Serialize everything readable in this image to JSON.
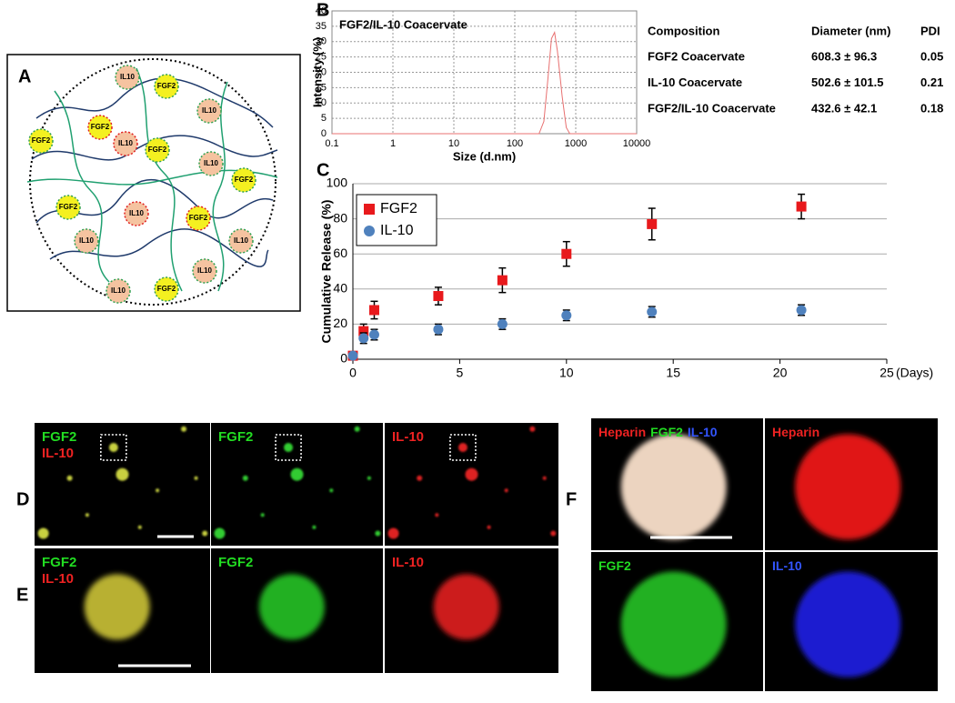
{
  "panel_labels": [
    "A",
    "B",
    "C",
    "D",
    "E",
    "F"
  ],
  "diagram": {
    "labels": [
      "IL10",
      "FGF2",
      "FGF2",
      "IL10",
      "FGF2",
      "IL10",
      "FGF2",
      "IL10",
      "FGF2",
      "FGF2",
      "IL10",
      "FGF2",
      "IL10",
      "IL10",
      "IL10",
      "IL10",
      "FGF2"
    ]
  },
  "chart_data": [
    {
      "type": "line",
      "title": "FGF2/IL-10 Coacervate",
      "x_label": "Size (d.nm)",
      "y_label": "Intensity (%)",
      "xscale": "log",
      "grid": true,
      "x": [
        0.1,
        250,
        300,
        350,
        400,
        450,
        500,
        600,
        700,
        800,
        10000
      ],
      "series": [
        {
          "name": "FGF2/IL-10 Coacervate",
          "color": "#e87070",
          "values": [
            0,
            0,
            4,
            18,
            31,
            33,
            27,
            12,
            2,
            0,
            0
          ]
        }
      ],
      "xlim": [
        0.1,
        10000
      ],
      "xticks": [
        0.1,
        1,
        10,
        100,
        1000,
        10000
      ],
      "ylim": [
        0,
        40
      ],
      "yticks": [
        0,
        5,
        10,
        15,
        20,
        25,
        30,
        35,
        40
      ]
    },
    {
      "type": "scatter",
      "y_label": "Cumulative Release (%)",
      "x_label": "(Days)",
      "grid": true,
      "legend": "upper-left",
      "series": [
        {
          "name": "FGF2",
          "color": "#e8191c",
          "marker": "square",
          "x": [
            0,
            0.5,
            1,
            4,
            7,
            10,
            14,
            21
          ],
          "values": [
            2,
            16,
            28,
            36,
            45,
            60,
            77,
            87
          ],
          "errors": [
            1,
            4,
            5,
            5,
            7,
            7,
            9,
            7
          ]
        },
        {
          "name": "IL-10",
          "color": "#4f81bd",
          "marker": "circle",
          "x": [
            0,
            0.5,
            1,
            4,
            7,
            10,
            14,
            21
          ],
          "values": [
            2,
            12,
            14,
            17,
            20,
            25,
            27,
            28
          ],
          "errors": [
            1,
            3,
            3,
            3,
            3,
            3,
            3,
            3
          ]
        }
      ],
      "xlim": [
        0,
        25
      ],
      "xticks": [
        0,
        5,
        10,
        15,
        20,
        25
      ],
      "ylim": [
        0,
        100
      ],
      "yticks": [
        0,
        20,
        40,
        60,
        80,
        100
      ]
    }
  ],
  "table": {
    "header": [
      "Composition",
      "Diameter (nm)",
      "PDI"
    ],
    "rows": [
      [
        "FGF2 Coacervate",
        "608.3 ± 96.3",
        0.05
      ],
      [
        "IL-10 Coacervate",
        "502.6 ± 101.5",
        0.21
      ],
      [
        "FGF2/IL-10 Coacervate",
        "432.6 ± 42.1",
        0.18
      ]
    ]
  },
  "micrographs": {
    "D": [
      {
        "labels": [
          "FGF2",
          "IL-10"
        ],
        "colors": [
          "#22dd22",
          "#ee2222"
        ]
      },
      {
        "labels": [
          "FGF2"
        ],
        "colors": [
          "#22dd22"
        ]
      },
      {
        "labels": [
          "IL-10"
        ],
        "colors": [
          "#ee2222"
        ]
      }
    ],
    "E": [
      {
        "labels": [
          "FGF2",
          "IL-10"
        ],
        "colors": [
          "#22dd22",
          "#ee2222"
        ]
      },
      {
        "labels": [
          "FGF2"
        ],
        "colors": [
          "#22dd22"
        ]
      },
      {
        "labels": [
          "IL-10"
        ],
        "colors": [
          "#ee2222"
        ]
      }
    ],
    "F": [
      {
        "labels": [
          "Heparin",
          "FGF2",
          "IL-10"
        ],
        "colors": [
          "#ee2222",
          "#22dd22",
          "#3355ff"
        ]
      },
      {
        "labels": [
          "Heparin"
        ],
        "colors": [
          "#ee2222"
        ]
      },
      {
        "labels": [
          "FGF2"
        ],
        "colors": [
          "#22dd22"
        ]
      },
      {
        "labels": [
          "IL-10"
        ],
        "colors": [
          "#3355ff"
        ]
      }
    ]
  }
}
